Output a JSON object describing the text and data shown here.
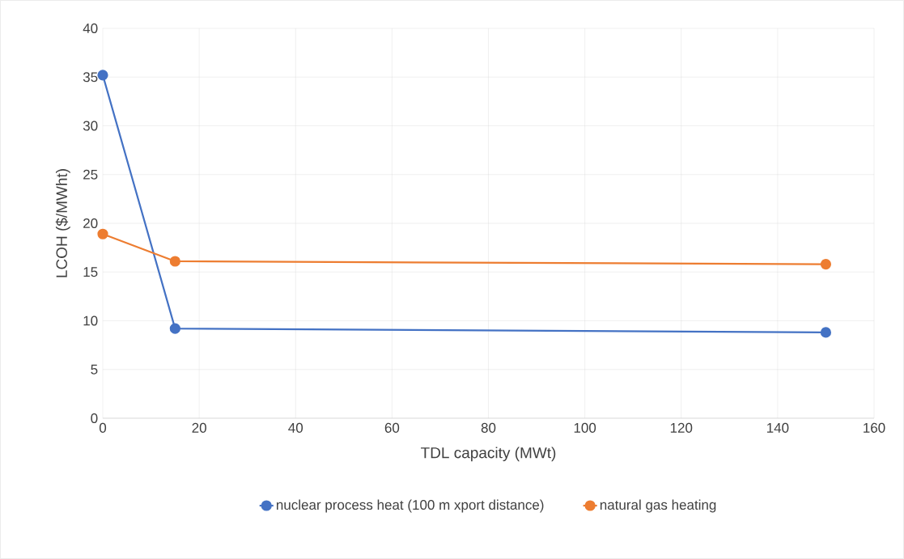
{
  "chart_data": {
    "type": "line",
    "xlabel": "TDL capacity (MWt)",
    "ylabel": "LCOH ($/MWht)",
    "xlim": [
      0,
      160
    ],
    "ylim": [
      0,
      40
    ],
    "xticks": [
      0,
      20,
      40,
      60,
      80,
      100,
      120,
      140,
      160
    ],
    "yticks": [
      0,
      5,
      10,
      15,
      20,
      25,
      30,
      35,
      40
    ],
    "grid": true,
    "legend": "bottom",
    "marker": "circle",
    "line_style": "solid",
    "series": [
      {
        "name": "nuclear process heat (100 m xport distance)",
        "color": "#4472c4",
        "x": [
          0,
          15,
          150
        ],
        "values": [
          35.2,
          9.2,
          8.8
        ]
      },
      {
        "name": "natural gas heating",
        "color": "#ed7d31",
        "x": [
          0,
          15,
          150
        ],
        "values": [
          18.9,
          16.1,
          15.8
        ]
      }
    ]
  }
}
